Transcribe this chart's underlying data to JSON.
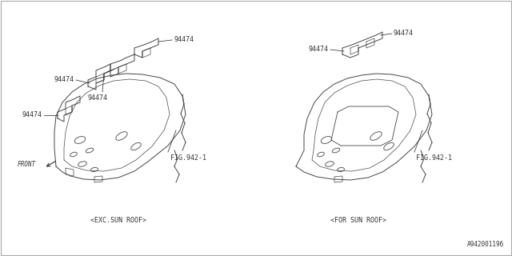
{
  "background_color": "#ffffff",
  "border_color": "#aaaaaa",
  "line_color": "#444444",
  "label_color": "#333333",
  "part_number": "94474",
  "fig_ref": "FIG.942-1",
  "caption_left": "<EXC.SUN ROOF>",
  "caption_right": "<FOR SUN ROOF>",
  "diagram_id": "A942001196",
  "font_size": 5.5,
  "label_font_size": 6.0
}
